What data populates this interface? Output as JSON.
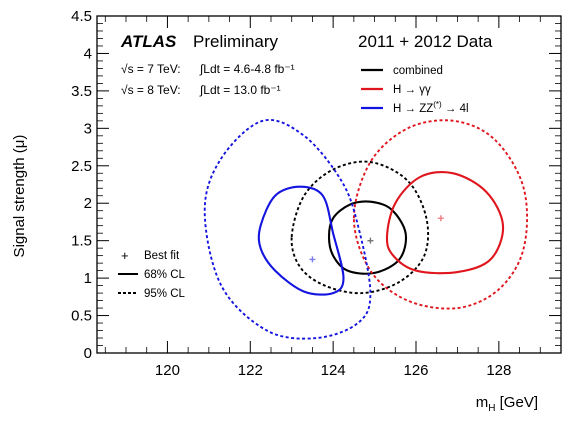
{
  "chart_data": {
    "type": "contour",
    "experiment": "ATLAS",
    "status": "Preliminary",
    "dataset": "2011 + 2012 Data",
    "lumi_lines": [
      {
        "energy": "√s = 7 TeV:",
        "lumi": "∫Ldt = 4.6-4.8 fb⁻¹"
      },
      {
        "energy": "√s = 8 TeV:",
        "lumi": "∫Ldt = 13.0 fb⁻¹"
      }
    ],
    "xlabel": "m_H [GeV]",
    "ylabel": "Signal strength (μ)",
    "xlim": [
      118.3,
      129.5
    ],
    "ylim": [
      0,
      4.5
    ],
    "xticks": [
      120,
      122,
      124,
      126,
      128
    ],
    "yticks": [
      0,
      0.5,
      1,
      1.5,
      2,
      2.5,
      3,
      3.5,
      4,
      4.5
    ],
    "legend_channels": [
      {
        "key": "combined",
        "label": "combined",
        "color": "#000000"
      },
      {
        "key": "gg",
        "label": "H → γγ",
        "color": "#e0161f"
      },
      {
        "key": "zz",
        "label": "H → ZZ(*) → 4l",
        "color": "#1414e0"
      }
    ],
    "legend_styles": [
      {
        "marker": "+",
        "label": "Best fit"
      },
      {
        "style": "solid",
        "label": "68% CL"
      },
      {
        "style": "dashed",
        "label": "95% CL"
      }
    ],
    "series": [
      {
        "key": "combined",
        "color": "#000000",
        "best_fit": {
          "x": 124.9,
          "y": 1.5
        },
        "cl68": [
          [
            123.9,
            1.55
          ],
          [
            124.0,
            1.8
          ],
          [
            124.4,
            1.98
          ],
          [
            124.9,
            2.02
          ],
          [
            125.4,
            1.92
          ],
          [
            125.75,
            1.6
          ],
          [
            125.6,
            1.25
          ],
          [
            125.0,
            1.07
          ],
          [
            124.35,
            1.1
          ],
          [
            124.0,
            1.3
          ]
        ],
        "cl95": [
          [
            123.0,
            1.55
          ],
          [
            123.3,
            2.1
          ],
          [
            124.0,
            2.45
          ],
          [
            124.9,
            2.55
          ],
          [
            125.8,
            2.3
          ],
          [
            126.25,
            1.8
          ],
          [
            126.2,
            1.3
          ],
          [
            125.6,
            0.95
          ],
          [
            124.7,
            0.8
          ],
          [
            123.8,
            0.9
          ],
          [
            123.2,
            1.15
          ]
        ]
      },
      {
        "key": "gg",
        "color": "#e0161f",
        "best_fit": {
          "x": 126.6,
          "y": 1.8
        },
        "cl68": [
          [
            125.3,
            1.55
          ],
          [
            125.5,
            2.0
          ],
          [
            126.1,
            2.35
          ],
          [
            126.9,
            2.4
          ],
          [
            127.7,
            2.15
          ],
          [
            128.1,
            1.7
          ],
          [
            127.8,
            1.25
          ],
          [
            127.0,
            1.08
          ],
          [
            126.0,
            1.1
          ],
          [
            125.45,
            1.3
          ]
        ],
        "cl95": [
          [
            124.5,
            1.8
          ],
          [
            124.9,
            2.55
          ],
          [
            125.8,
            3.0
          ],
          [
            126.9,
            3.1
          ],
          [
            127.9,
            2.85
          ],
          [
            128.6,
            2.2
          ],
          [
            128.6,
            1.4
          ],
          [
            128.0,
            0.85
          ],
          [
            127.0,
            0.6
          ],
          [
            125.8,
            0.7
          ],
          [
            124.9,
            1.1
          ]
        ]
      },
      {
        "key": "zz",
        "color": "#1414e0",
        "best_fit": {
          "x": 123.5,
          "y": 1.25
        },
        "cl68": [
          [
            122.25,
            1.7
          ],
          [
            122.6,
            2.1
          ],
          [
            123.2,
            2.22
          ],
          [
            123.75,
            2.1
          ],
          [
            124.0,
            1.6
          ],
          [
            124.25,
            1.0
          ],
          [
            124.0,
            0.8
          ],
          [
            123.3,
            0.82
          ],
          [
            122.6,
            1.1
          ],
          [
            122.25,
            1.4
          ]
        ],
        "cl95": [
          [
            120.9,
            1.9
          ],
          [
            121.3,
            2.6
          ],
          [
            122.3,
            3.1
          ],
          [
            123.3,
            2.9
          ],
          [
            124.2,
            2.3
          ],
          [
            124.6,
            1.7
          ],
          [
            124.9,
            0.8
          ],
          [
            124.6,
            0.4
          ],
          [
            123.6,
            0.2
          ],
          [
            122.4,
            0.3
          ],
          [
            121.3,
            0.9
          ]
        ]
      }
    ]
  }
}
